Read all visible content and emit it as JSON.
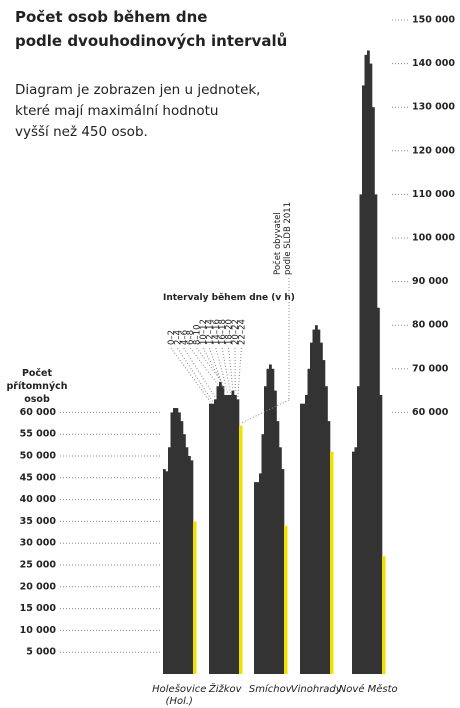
{
  "chart_data": {
    "type": "bar",
    "title": [
      "Počet osob během dne",
      "podle dvouhodinových intervalů"
    ],
    "subtitle": [
      "Diagram je zobrazen jen u jednotek,",
      "které mají maximální hodnotu",
      "vyšší než 450 osob."
    ],
    "y_label": [
      "Počet",
      "přítomných",
      "osob"
    ],
    "legend_title": "Intervaly během dne (v h)",
    "categories": [
      "Holešovice (Hol.)",
      "Žižkov",
      "Smíchov",
      "Vinohrady",
      "Nové Město"
    ],
    "series": [
      {
        "name": "0–2",
        "color": "#333333",
        "values": [
          47000,
          62000,
          44000,
          62000,
          51000
        ]
      },
      {
        "name": "2–4",
        "color": "#333333",
        "values": [
          46500,
          62000,
          44000,
          62000,
          52000
        ]
      },
      {
        "name": "4–6",
        "color": "#333333",
        "values": [
          52000,
          63000,
          46000,
          64000,
          66000
        ]
      },
      {
        "name": "6–8",
        "color": "#333333",
        "values": [
          60000,
          66000,
          55000,
          70000,
          110000
        ]
      },
      {
        "name": "8–10",
        "color": "#333333",
        "values": [
          61000,
          67000,
          66000,
          76000,
          135000
        ]
      },
      {
        "name": "10–12",
        "color": "#333333",
        "values": [
          61000,
          66000,
          70000,
          79000,
          142000
        ]
      },
      {
        "name": "12–14",
        "color": "#333333",
        "values": [
          60000,
          64000,
          71000,
          80000,
          143000
        ]
      },
      {
        "name": "14–16",
        "color": "#333333",
        "values": [
          58000,
          64000,
          70000,
          79000,
          140000
        ]
      },
      {
        "name": "16–18",
        "color": "#333333",
        "values": [
          55000,
          64000,
          65000,
          76000,
          130000
        ]
      },
      {
        "name": "18–20",
        "color": "#333333",
        "values": [
          52000,
          65000,
          58000,
          72000,
          110000
        ]
      },
      {
        "name": "20–22",
        "color": "#333333",
        "values": [
          50000,
          64000,
          52000,
          66000,
          84000
        ]
      },
      {
        "name": "22–24",
        "color": "#333333",
        "values": [
          49000,
          63000,
          47000,
          58000,
          64000
        ]
      },
      {
        "name": "Počet obyvatel podle SLDB 2011",
        "color": "#f0e000",
        "values": [
          35000,
          57000,
          34000,
          51000,
          27000
        ]
      }
    ],
    "ylim": [
      0,
      150000
    ],
    "yticks": [
      {
        "value": 5000,
        "label": "5 000"
      },
      {
        "value": 10000,
        "label": "10 000"
      },
      {
        "value": 15000,
        "label": "15 000"
      },
      {
        "value": 20000,
        "label": "20 000"
      },
      {
        "value": 25000,
        "label": "25 000"
      },
      {
        "value": 30000,
        "label": "30 000"
      },
      {
        "value": 35000,
        "label": "35 000"
      },
      {
        "value": 40000,
        "label": "40 000"
      },
      {
        "value": 45000,
        "label": "45 000"
      },
      {
        "value": 50000,
        "label": "50 000"
      },
      {
        "value": 55000,
        "label": "55 000"
      },
      {
        "value": 60000,
        "label": "60 000"
      }
    ],
    "y2lim": [
      0,
      150000
    ],
    "y2ticks": [
      {
        "value": 60000,
        "label": "60 000"
      },
      {
        "value": 70000,
        "label": "70 000"
      },
      {
        "value": 80000,
        "label": "80 000"
      },
      {
        "value": 90000,
        "label": "90 000"
      },
      {
        "value": 100000,
        "label": "100 000"
      },
      {
        "value": 110000,
        "label": "110 000"
      },
      {
        "value": 120000,
        "label": "120 000"
      },
      {
        "value": 130000,
        "label": "130 000"
      },
      {
        "value": 140000,
        "label": "140 000"
      },
      {
        "value": 150000,
        "label": "150 000"
      }
    ],
    "grid": true
  }
}
